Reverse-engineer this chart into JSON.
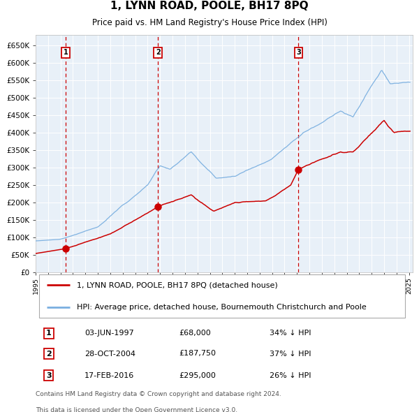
{
  "title": "1, LYNN ROAD, POOLE, BH17 8PQ",
  "subtitle": "Price paid vs. HM Land Registry's House Price Index (HPI)",
  "legend_label_red": "1, LYNN ROAD, POOLE, BH17 8PQ (detached house)",
  "legend_label_blue": "HPI: Average price, detached house, Bournemouth Christchurch and Poole",
  "red_color": "#cc0000",
  "blue_color": "#7aafe0",
  "plot_bg_color": "#e8f0f8",
  "dashed_color": "#cc0000",
  "ylim": [
    0,
    680000
  ],
  "yticks": [
    0,
    50000,
    100000,
    150000,
    200000,
    250000,
    300000,
    350000,
    400000,
    450000,
    500000,
    550000,
    600000,
    650000
  ],
  "ytick_labels": [
    "£0",
    "£50K",
    "£100K",
    "£150K",
    "£200K",
    "£250K",
    "£300K",
    "£350K",
    "£400K",
    "£450K",
    "£500K",
    "£550K",
    "£600K",
    "£650K"
  ],
  "sale_years": [
    1997.42,
    2004.83,
    2016.12
  ],
  "sale_prices": [
    68000,
    187750,
    295000
  ],
  "sale_labels": [
    "1",
    "2",
    "3"
  ],
  "footnote1": "Contains HM Land Registry data © Crown copyright and database right 2024.",
  "footnote2": "This data is licensed under the Open Government Licence v3.0.",
  "row_data": [
    [
      "1",
      "03-JUN-1997",
      "£68,000",
      "34% ↓ HPI"
    ],
    [
      "2",
      "28-OCT-2004",
      "£187,750",
      "37% ↓ HPI"
    ],
    [
      "3",
      "17-FEB-2016",
      "£295,000",
      "26% ↓ HPI"
    ]
  ]
}
